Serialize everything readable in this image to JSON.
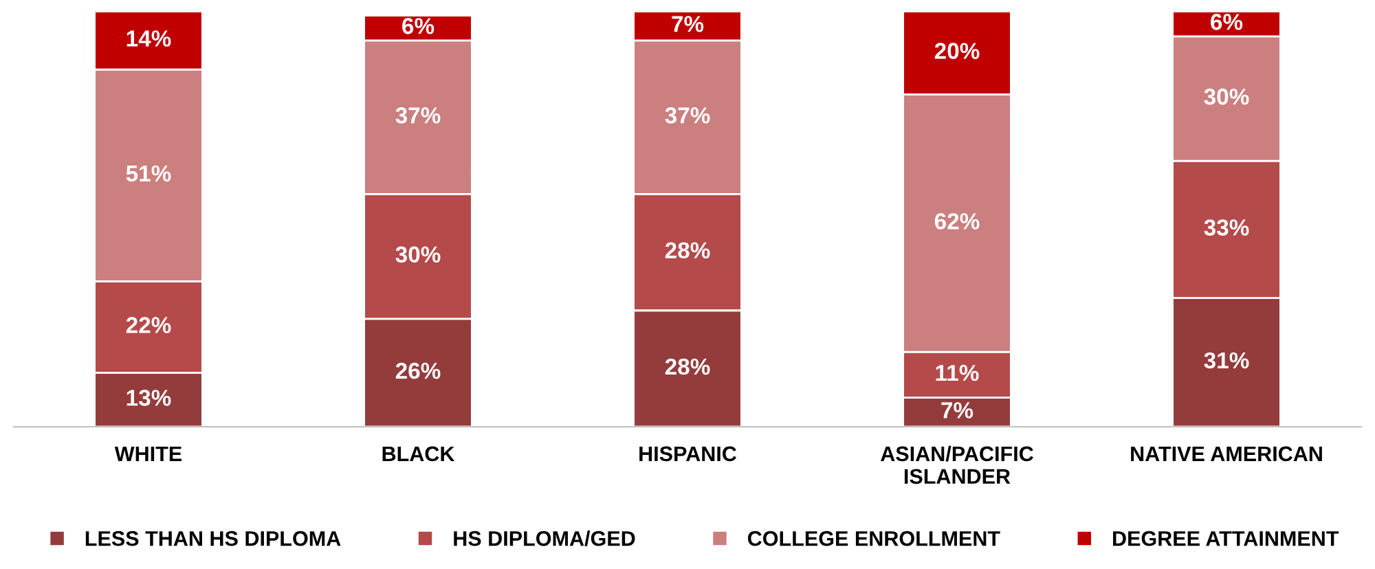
{
  "chart_data": {
    "type": "bar",
    "stacked": true,
    "legend": "bottom",
    "grid": false,
    "categories": [
      "WHITE",
      "BLACK",
      "HISPANIC",
      "ASIAN/PACIFIC\nISLANDER",
      "NATIVE AMERICAN"
    ],
    "series": [
      {
        "name": "LESS THAN HS DIPLOMA",
        "color": "#943c3c",
        "values": [
          13,
          26,
          28,
          7,
          31
        ],
        "value_labels": [
          "13%",
          "26%",
          "28%",
          "7%",
          "31%"
        ]
      },
      {
        "name": "HS DIPLOMA/GED",
        "color": "#b54a4a",
        "values": [
          22,
          30,
          28,
          11,
          33
        ],
        "value_labels": [
          "22%",
          "30%",
          "28%",
          "11%",
          "33%"
        ]
      },
      {
        "name": "COLLEGE ENROLLMENT",
        "color": "#cc7f7f",
        "values": [
          51,
          37,
          37,
          62,
          30
        ],
        "value_labels": [
          "51%",
          "37%",
          "37%",
          "62%",
          "30%"
        ]
      },
      {
        "name": "DEGREE ATTAINMENT",
        "color": "#c00000",
        "values": [
          14,
          6,
          7,
          20,
          6
        ],
        "value_labels": [
          "14%",
          "6%",
          "7%",
          "20%",
          "6%"
        ]
      }
    ]
  }
}
